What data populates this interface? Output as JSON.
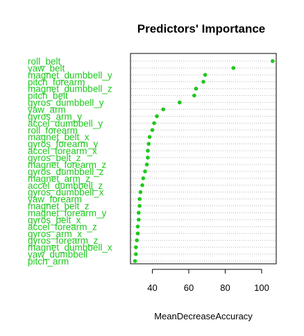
{
  "chart_data": {
    "type": "scatter",
    "title": "Predictors' Importance",
    "xlabel": "MeanDecreaseAccuracy",
    "ylabel": "",
    "xlim": [
      28,
      108
    ],
    "xticks": [
      40,
      60,
      80,
      100
    ],
    "grid": "dotted horizontal guide per predictor",
    "colors": {
      "points": "#1ec81e",
      "labels": "#1ec81e",
      "guides": "#b4b4b4",
      "axis": "#000000"
    },
    "categories": [
      "roll_belt",
      "yaw_belt",
      "magnet_dumbbell_y",
      "pitch_forearm",
      "magnet_dumbbell_z",
      "pitch_belt",
      "gyros_dumbbell_y",
      "yaw_arm",
      "gyros_arm_y",
      "accel_dumbbell_y",
      "roll_forearm",
      "magnet_belt_x",
      "gyros_forearm_y",
      "accel_forearm_x",
      "gyros_belt_z",
      "magnet_forearm_z",
      "gyros_dumbbell_z",
      "magnet_arm_z",
      "accel_dumbbell_z",
      "gyros_dumbbell_x",
      "yaw_forearm",
      "magnet_belt_z",
      "magnet_forearm_y",
      "gyros_belt_x",
      "accel_forearm_z",
      "gyros_arm_x",
      "gyros_forearm_z",
      "magnet_dumbbell_x",
      "yaw_dumbbell",
      "pitch_arm"
    ],
    "values": [
      106,
      84.5,
      69,
      68,
      64,
      63,
      55,
      46,
      42.5,
      41,
      40,
      38.5,
      38,
      37.5,
      37.5,
      37,
      36,
      35,
      34.5,
      33.5,
      33,
      33,
      32.5,
      32.5,
      32,
      32,
      31.5,
      31,
      31,
      30.5
    ]
  }
}
